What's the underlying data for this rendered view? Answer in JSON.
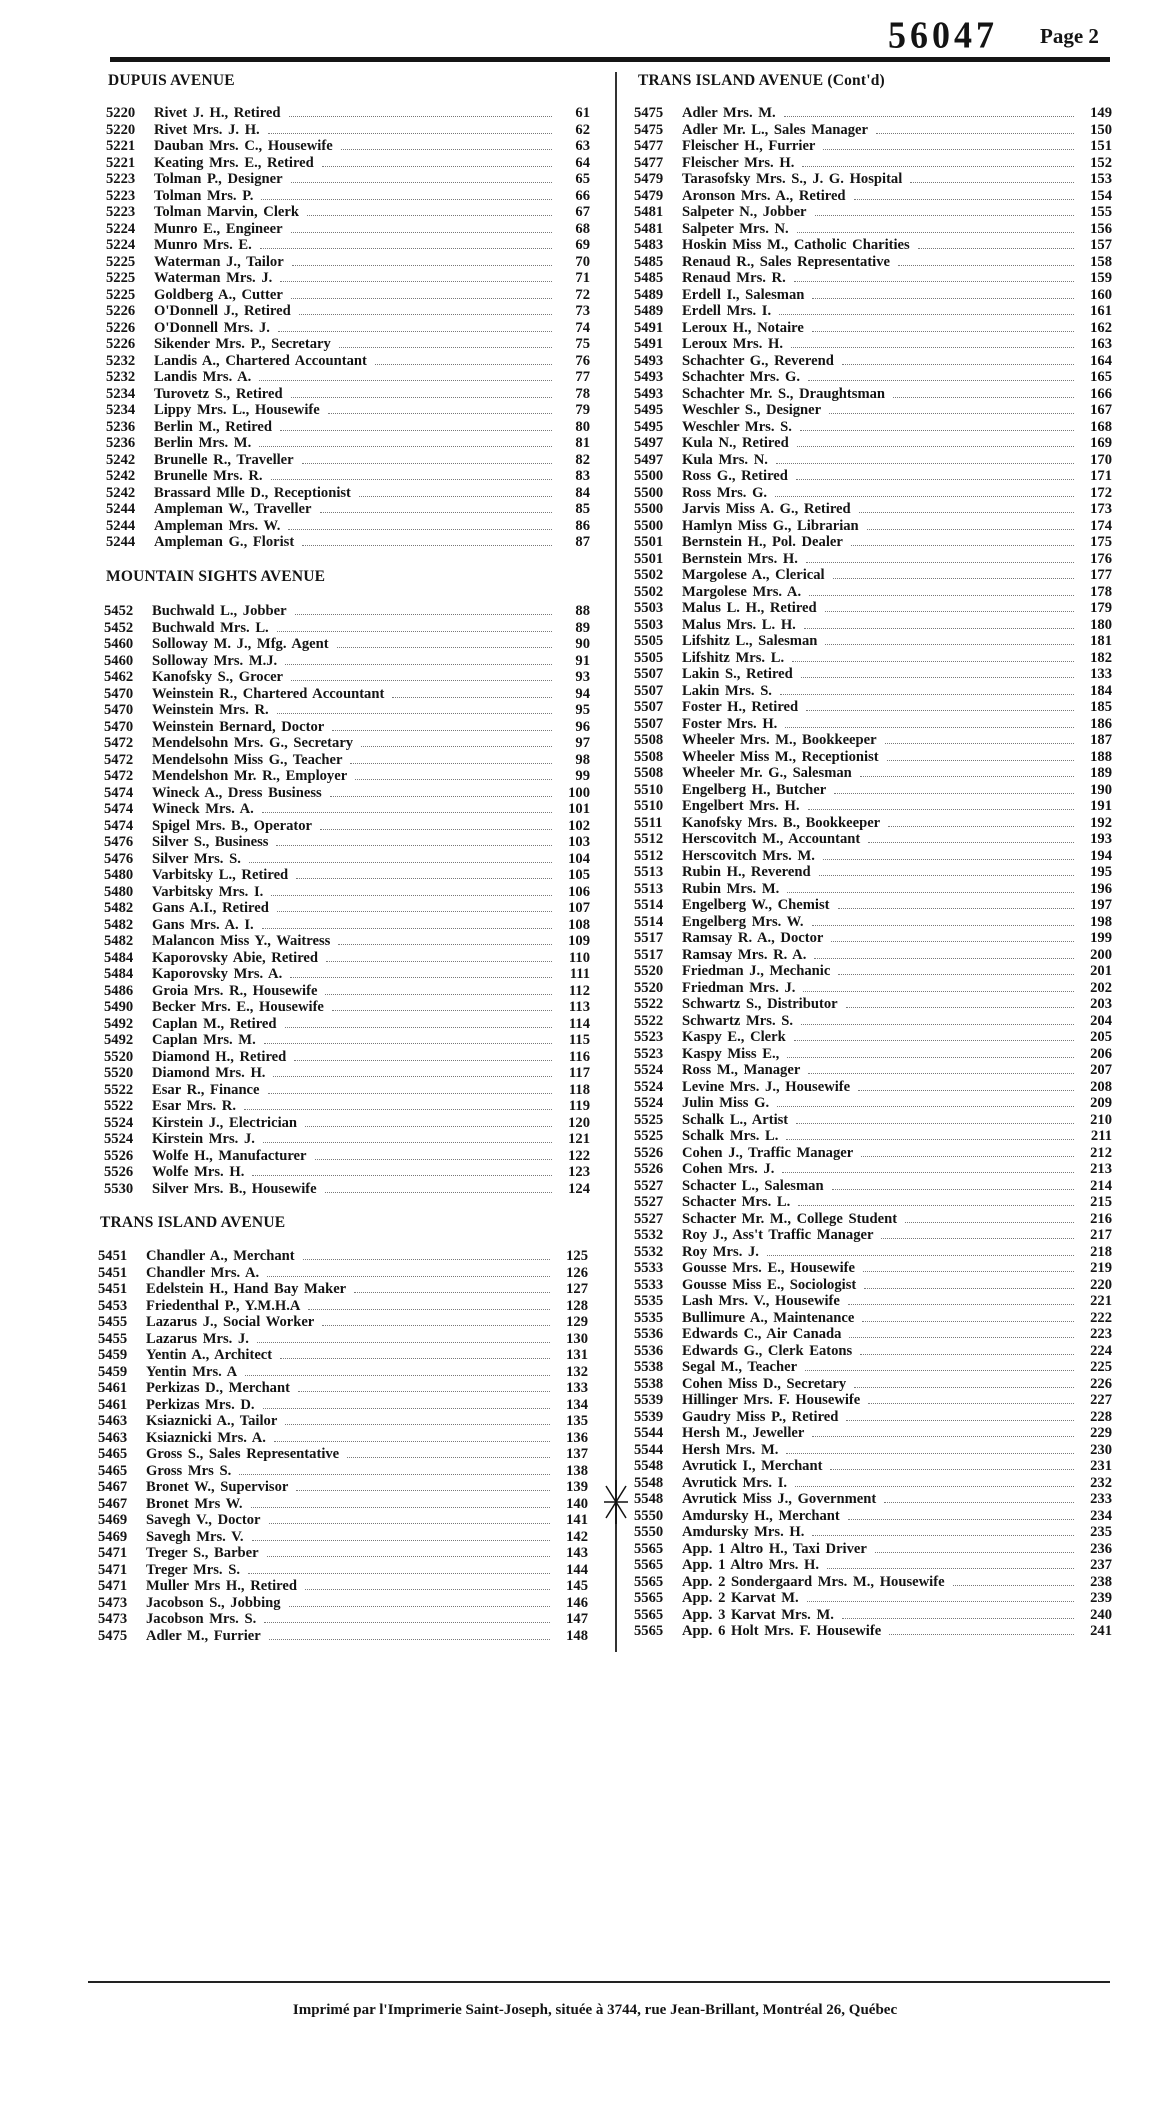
{
  "header": {
    "doc_number": "56047",
    "page_label": "Page 2"
  },
  "left_column": {
    "sections": [
      {
        "title": "DUPUIS AVENUE",
        "entries": [
          [
            "5220",
            "Rivet J. H., Retired",
            "61"
          ],
          [
            "5220",
            "Rivet Mrs. J. H.",
            "62"
          ],
          [
            "5221",
            "Dauban Mrs. C., Housewife",
            "63"
          ],
          [
            "5221",
            "Keating Mrs. E., Retired",
            "64"
          ],
          [
            "5223",
            "Tolman P., Designer",
            "65"
          ],
          [
            "5223",
            "Tolman Mrs. P.",
            "66"
          ],
          [
            "5223",
            "Tolman Marvin, Clerk",
            "67"
          ],
          [
            "5224",
            "Munro E., Engineer",
            "68"
          ],
          [
            "5224",
            "Munro Mrs. E.",
            "69"
          ],
          [
            "5225",
            "Waterman J., Tailor",
            "70"
          ],
          [
            "5225",
            "Waterman Mrs. J.",
            "71"
          ],
          [
            "5225",
            "Goldberg A., Cutter",
            "72"
          ],
          [
            "5226",
            "O'Donnell J., Retired",
            "73"
          ],
          [
            "5226",
            "O'Donnell Mrs. J.",
            "74"
          ],
          [
            "5226",
            "Sikender Mrs. P., Secretary",
            "75"
          ],
          [
            "5232",
            "Landis A., Chartered Accountant",
            "76"
          ],
          [
            "5232",
            "Landis Mrs. A.",
            "77"
          ],
          [
            "5234",
            "Turovetz S., Retired",
            "78"
          ],
          [
            "5234",
            "Lippy Mrs. L., Housewife",
            "79"
          ],
          [
            "5236",
            "Berlin M., Retired",
            "80"
          ],
          [
            "5236",
            "Berlin Mrs. M.",
            "81"
          ],
          [
            "5242",
            "Brunelle R., Traveller",
            "82"
          ],
          [
            "5242",
            "Brunelle Mrs. R.",
            "83"
          ],
          [
            "5242",
            "Brassard Mlle D., Receptionist",
            "84"
          ],
          [
            "5244",
            "Ampleman W., Traveller",
            "85"
          ],
          [
            "5244",
            "Ampleman Mrs. W.",
            "86"
          ],
          [
            "5244",
            "Ampleman G., Florist",
            "87"
          ]
        ]
      },
      {
        "title": "MOUNTAIN SIGHTS AVENUE",
        "entries": [
          [
            "5452",
            "Buchwald L., Jobber",
            "88"
          ],
          [
            "5452",
            "Buchwald Mrs. L.",
            "89"
          ],
          [
            "5460",
            "Solloway M. J., Mfg. Agent",
            "90"
          ],
          [
            "5460",
            "Solloway Mrs. M.J.",
            "91"
          ],
          [
            "5462",
            "Kanofsky S., Grocer",
            "93"
          ],
          [
            "5470",
            "Weinstein R., Chartered Accountant",
            "94"
          ],
          [
            "5470",
            "Weinstein Mrs. R.",
            "95"
          ],
          [
            "5470",
            "Weinstein Bernard, Doctor",
            "96"
          ],
          [
            "5472",
            "Mendelsohn Mrs. G., Secretary",
            "97"
          ],
          [
            "5472",
            "Mendelsohn Miss G., Teacher",
            "98"
          ],
          [
            "5472",
            "Mendelshon Mr. R., Employer",
            "99"
          ],
          [
            "5474",
            "Wineck A., Dress Business",
            "100"
          ],
          [
            "5474",
            "Wineck Mrs. A.",
            "101"
          ],
          [
            "5474",
            "Spigel Mrs. B., Operator",
            "102"
          ],
          [
            "5476",
            "Silver S., Business",
            "103"
          ],
          [
            "5476",
            "Silver Mrs. S.",
            "104"
          ],
          [
            "5480",
            "Varbitsky L., Retired",
            "105"
          ],
          [
            "5480",
            "Varbitsky Mrs. I.",
            "106"
          ],
          [
            "5482",
            "Gans A.I., Retired",
            "107"
          ],
          [
            "5482",
            "Gans Mrs. A. I.",
            "108"
          ],
          [
            "5482",
            "Malancon Miss Y., Waitress",
            "109"
          ],
          [
            "5484",
            "Kaporovsky Abie, Retired",
            "110"
          ],
          [
            "5484",
            "Kaporovsky Mrs. A.",
            "111"
          ],
          [
            "5486",
            "Groia Mrs. R., Housewife",
            "112"
          ],
          [
            "5490",
            "Becker Mrs. E., Housewife",
            "113"
          ],
          [
            "5492",
            "Caplan M., Retired",
            "114"
          ],
          [
            "5492",
            "Caplan Mrs. M.",
            "115"
          ],
          [
            "5520",
            "Diamond H., Retired",
            "116"
          ],
          [
            "5520",
            "Diamond Mrs. H.",
            "117"
          ],
          [
            "5522",
            "Esar R., Finance",
            "118"
          ],
          [
            "5522",
            "Esar Mrs. R.",
            "119"
          ],
          [
            "5524",
            "Kirstein J., Electrician",
            "120"
          ],
          [
            "5524",
            "Kirstein Mrs. J.",
            "121"
          ],
          [
            "5526",
            "Wolfe H., Manufacturer",
            "122"
          ],
          [
            "5526",
            "Wolfe Mrs. H.",
            "123"
          ],
          [
            "5530",
            "Silver Mrs. B., Housewife",
            "124"
          ]
        ]
      },
      {
        "title": "TRANS ISLAND AVENUE",
        "entries": [
          [
            "5451",
            "Chandler A., Merchant",
            "125"
          ],
          [
            "5451",
            "Chandler Mrs. A.",
            "126"
          ],
          [
            "5451",
            "Edelstein H., Hand Bay Maker",
            "127"
          ],
          [
            "5453",
            "Friedenthal P., Y.M.H.A",
            "128"
          ],
          [
            "5455",
            "Lazarus J., Social Worker",
            "129"
          ],
          [
            "5455",
            "Lazarus Mrs. J.",
            "130"
          ],
          [
            "5459",
            "Yentin A., Architect",
            "131"
          ],
          [
            "5459",
            "Yentin Mrs. A",
            "132"
          ],
          [
            "5461",
            "Perkizas D., Merchant",
            "133"
          ],
          [
            "5461",
            "Perkizas Mrs. D.",
            "134"
          ],
          [
            "5463",
            "Ksiaznicki A., Tailor",
            "135"
          ],
          [
            "5463",
            "Ksiaznicki Mrs. A.",
            "136"
          ],
          [
            "5465",
            "Gross S., Sales Representative",
            "137"
          ],
          [
            "5465",
            "Gross Mrs S.",
            "138"
          ],
          [
            "5467",
            "Bronet W., Supervisor",
            "139"
          ],
          [
            "5467",
            "Bronet Mrs W.",
            "140"
          ],
          [
            "5469",
            "Savegh V., Doctor",
            "141"
          ],
          [
            "5469",
            "Savegh Mrs. V.",
            "142"
          ],
          [
            "5471",
            "Treger S., Barber",
            "143"
          ],
          [
            "5471",
            "Treger Mrs. S.",
            "144"
          ],
          [
            "5471",
            "Muller Mrs H., Retired",
            "145"
          ],
          [
            "5473",
            "Jacobson S., Jobbing",
            "146"
          ],
          [
            "5473",
            "Jacobson Mrs. S.",
            "147"
          ],
          [
            "5475",
            "Adler M., Furrier",
            "148"
          ]
        ]
      }
    ]
  },
  "right_column": {
    "sections": [
      {
        "title": "TRANS ISLAND AVENUE (Cont'd)",
        "entries": [
          [
            "5475",
            "Adler Mrs. M.",
            "149"
          ],
          [
            "5475",
            "Adler Mr. L., Sales Manager",
            "150"
          ],
          [
            "5477",
            "Fleischer H., Furrier",
            "151"
          ],
          [
            "5477",
            "Fleischer Mrs. H.",
            "152"
          ],
          [
            "5479",
            "Tarasofsky Mrs. S., J. G. Hospital",
            "153"
          ],
          [
            "5479",
            "Aronson Mrs. A., Retired",
            "154"
          ],
          [
            "5481",
            "Salpeter N., Jobber",
            "155"
          ],
          [
            "5481",
            "Salpeter Mrs. N.",
            "156"
          ],
          [
            "5483",
            "Hoskin Miss M., Catholic Charities",
            "157"
          ],
          [
            "5485",
            "Renaud R., Sales Representative",
            "158"
          ],
          [
            "5485",
            "Renaud Mrs. R.",
            "159"
          ],
          [
            "5489",
            "Erdell I., Salesman",
            "160"
          ],
          [
            "5489",
            "Erdell Mrs. I.",
            "161"
          ],
          [
            "5491",
            "Leroux H., Notaire",
            "162"
          ],
          [
            "5491",
            "Leroux Mrs. H.",
            "163"
          ],
          [
            "5493",
            "Schachter G., Reverend",
            "164"
          ],
          [
            "5493",
            "Schachter Mrs. G.",
            "165"
          ],
          [
            "5493",
            "Schachter Mr. S., Draughtsman",
            "166"
          ],
          [
            "5495",
            "Weschler S., Designer",
            "167"
          ],
          [
            "5495",
            "Weschler Mrs. S.",
            "168"
          ],
          [
            "5497",
            "Kula N., Retired",
            "169"
          ],
          [
            "5497",
            "Kula Mrs. N.",
            "170"
          ],
          [
            "5500",
            "Ross G., Retired",
            "171"
          ],
          [
            "5500",
            "Ross Mrs. G.",
            "172"
          ],
          [
            "5500",
            "Jarvis Miss A. G., Retired",
            "173"
          ],
          [
            "5500",
            "Hamlyn Miss G., Librarian",
            "174"
          ],
          [
            "5501",
            "Bernstein H., Pol. Dealer",
            "175"
          ],
          [
            "5501",
            "Bernstein Mrs. H.",
            "176"
          ],
          [
            "5502",
            "Margolese A., Clerical",
            "177"
          ],
          [
            "5502",
            "Margolese Mrs. A.",
            "178"
          ],
          [
            "5503",
            "Malus L. H., Retired",
            "179"
          ],
          [
            "5503",
            "Malus Mrs. L. H.",
            "180"
          ],
          [
            "5505",
            "Lifshitz L., Salesman",
            "181"
          ],
          [
            "5505",
            "Lifshitz Mrs. L.",
            "182"
          ],
          [
            "5507",
            "Lakin S., Retired",
            "133"
          ],
          [
            "5507",
            "Lakin Mrs. S.",
            "184"
          ],
          [
            "5507",
            "Foster H., Retired",
            "185"
          ],
          [
            "5507",
            "Foster Mrs. H.",
            "186"
          ],
          [
            "5508",
            "Wheeler Mrs. M., Bookkeeper",
            "187"
          ],
          [
            "5508",
            "Wheeler Miss M., Receptionist",
            "188"
          ],
          [
            "5508",
            "Wheeler Mr. G., Salesman",
            "189"
          ],
          [
            "5510",
            "Engelberg H., Butcher",
            "190"
          ],
          [
            "5510",
            "Engelbert Mrs. H.",
            "191"
          ],
          [
            "5511",
            "Kanofsky Mrs. B., Bookkeeper",
            "192"
          ],
          [
            "5512",
            "Herscovitch M., Accountant",
            "193"
          ],
          [
            "5512",
            "Herscovitch Mrs. M.",
            "194"
          ],
          [
            "5513",
            "Rubin H., Reverend",
            "195"
          ],
          [
            "5513",
            "Rubin Mrs. M.",
            "196"
          ],
          [
            "5514",
            "Engelberg W., Chemist",
            "197"
          ],
          [
            "5514",
            "Engelberg Mrs. W.",
            "198"
          ],
          [
            "5517",
            "Ramsay R. A., Doctor",
            "199"
          ],
          [
            "5517",
            "Ramsay Mrs. R. A.",
            "200"
          ],
          [
            "5520",
            "Friedman J., Mechanic",
            "201"
          ],
          [
            "5520",
            "Friedman Mrs. J.",
            "202"
          ],
          [
            "5522",
            "Schwartz S., Distributor",
            "203"
          ],
          [
            "5522",
            "Schwartz Mrs. S.",
            "204"
          ],
          [
            "5523",
            "Kaspy E., Clerk",
            "205"
          ],
          [
            "5523",
            "Kaspy Miss E.,",
            "206"
          ],
          [
            "5524",
            "Ross M., Manager",
            "207"
          ],
          [
            "5524",
            "Levine Mrs. J., Housewife",
            "208"
          ],
          [
            "5524",
            "Julin Miss G.",
            "209"
          ],
          [
            "5525",
            "Schalk L., Artist",
            "210"
          ],
          [
            "5525",
            "Schalk Mrs. L.",
            "211"
          ],
          [
            "5526",
            "Cohen J., Traffic Manager",
            "212"
          ],
          [
            "5526",
            "Cohen Mrs. J.",
            "213"
          ],
          [
            "5527",
            "Schacter L., Salesman",
            "214"
          ],
          [
            "5527",
            "Schacter Mrs. L.",
            "215"
          ],
          [
            "5527",
            "Schacter Mr. M., College Student",
            "216"
          ],
          [
            "5532",
            "Roy J., Ass't Traffic Manager",
            "217"
          ],
          [
            "5532",
            "Roy Mrs. J.",
            "218"
          ],
          [
            "5533",
            "Gousse Mrs. E., Housewife",
            "219"
          ],
          [
            "5533",
            "Gousse Miss E., Sociologist",
            "220"
          ],
          [
            "5535",
            "Lash Mrs. V., Housewife",
            "221"
          ],
          [
            "5535",
            "Bullimure A., Maintenance",
            "222"
          ],
          [
            "5536",
            "Edwards C., Air Canada",
            "223"
          ],
          [
            "5536",
            "Edwards G., Clerk Eatons",
            "224"
          ],
          [
            "5538",
            "Segal M., Teacher",
            "225"
          ],
          [
            "5538",
            "Cohen Miss D., Secretary",
            "226"
          ],
          [
            "5539",
            "Hillinger Mrs. F. Housewife",
            "227"
          ],
          [
            "5539",
            "Gaudry Miss P., Retired",
            "228"
          ],
          [
            "5544",
            "Hersh M., Jeweller",
            "229"
          ],
          [
            "5544",
            "Hersh Mrs. M.",
            "230"
          ],
          [
            "5548",
            "Avrutick I., Merchant",
            "231"
          ],
          [
            "5548",
            "Avrutick Mrs. I.",
            "232"
          ],
          [
            "5548",
            "Avrutick Miss J., Government",
            "233"
          ],
          [
            "5550",
            "Amdursky H., Merchant",
            "234"
          ],
          [
            "5550",
            "Amdursky Mrs. H.",
            "235"
          ],
          [
            "5565",
            "App.  1  Altro H., Taxi Driver",
            "236"
          ],
          [
            "5565",
            "App.  1  Altro Mrs. H.",
            "237"
          ],
          [
            "5565",
            "App.  2  Sondergaard Mrs. M., Housewife",
            "238"
          ],
          [
            "5565",
            "App.  2  Karvat M.",
            "239"
          ],
          [
            "5565",
            "App.  3  Karvat Mrs. M.",
            "240"
          ],
          [
            "5565",
            "App.  6  Holt Mrs. F. Housewife",
            "241"
          ]
        ]
      }
    ]
  },
  "footer": {
    "text": "Imprimé par l'Imprimerie Saint-Joseph, située à 3744, rue Jean-Brillant, Montréal 26, Québec"
  }
}
